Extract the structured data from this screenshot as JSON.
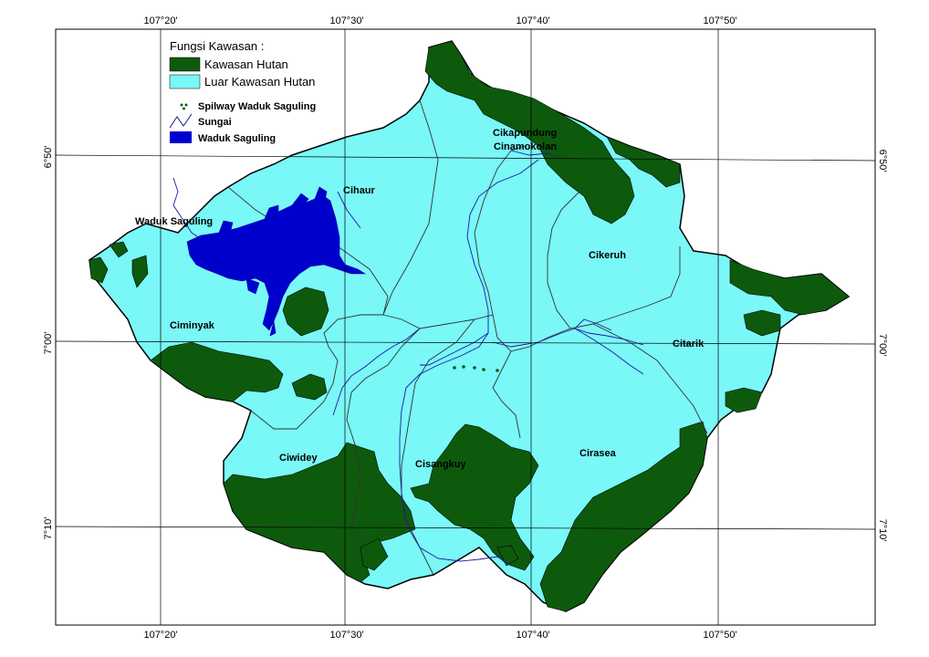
{
  "legend": {
    "title": "Fungsi Kawasan :",
    "items": [
      {
        "label": "Kawasan Hutan",
        "color": "#0d5a0d"
      },
      {
        "label": "Luar Kawasan Hutan",
        "color": "#7af7f7"
      }
    ],
    "symbols": [
      {
        "label": "Spilway Waduk Saguling",
        "icon": "spillway-icon"
      },
      {
        "label": "Sungai",
        "icon": "river-line-icon"
      },
      {
        "label": "Waduk Saguling",
        "icon": "reservoir-fill-icon",
        "color": "#0000cc"
      }
    ]
  },
  "graticule": {
    "top": [
      "107°20'",
      "107°30'",
      "107°40'",
      "107°50'"
    ],
    "bottom": [
      "107°20'",
      "107°30'",
      "107°40'",
      "107°50'"
    ],
    "left": [
      "6°50'",
      "7°00'",
      "7°10'"
    ],
    "right": [
      "6°50'",
      "7°00'",
      "7°10'"
    ]
  },
  "places": [
    "Cihaur",
    "Waduk Saguling",
    "Cikapundung",
    "Cinamokolan",
    "Cikeruh",
    "Ciminyak",
    "Citarik",
    "Ciwidey",
    "Cisangkuy",
    "Cirasea"
  ],
  "colors": {
    "forest": "#0d5a0d",
    "non_forest": "#7af7f7",
    "reservoir": "#0000cc",
    "river": "#1a1aa0",
    "boundary": "#333333"
  }
}
